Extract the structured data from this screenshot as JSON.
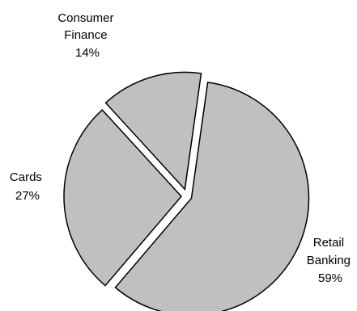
{
  "chart_data": {
    "type": "pie",
    "exploded": true,
    "fill_color": "#c0c0c0",
    "edge_color": "#000000",
    "slices": [
      {
        "label": [
          "Retail",
          "Banking"
        ],
        "percent_label": "59%",
        "value": 59
      },
      {
        "label": [
          "Cards"
        ],
        "percent_label": "27%",
        "value": 27
      },
      {
        "label": [
          "Consumer",
          "Finance"
        ],
        "percent_label": "14%",
        "value": 14
      }
    ]
  }
}
